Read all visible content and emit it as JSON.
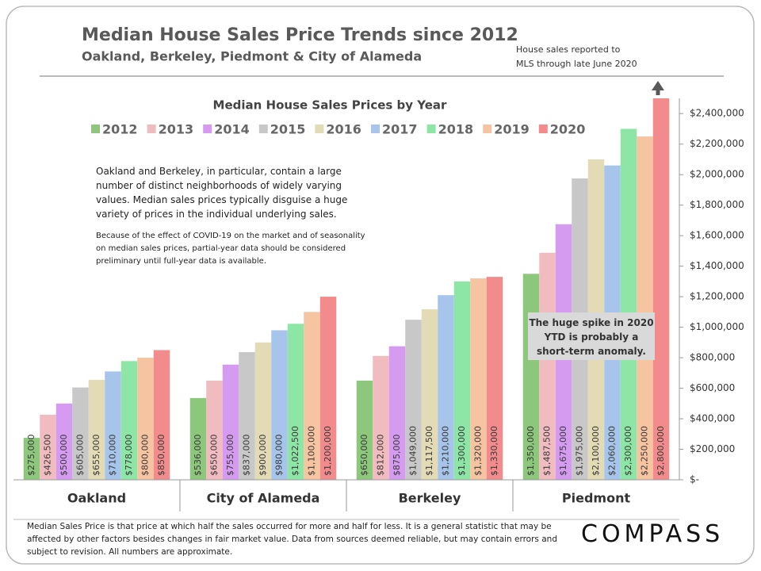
{
  "chart_data": {
    "type": "bar",
    "title": "Median House Sales Price Trends since 2012",
    "subtitle": "Oakland,  Berkeley, Piedmont & City of Alameda",
    "note": [
      "House sales reported to",
      "MLS through late June 2020"
    ],
    "chart_title": "Median House Sales Prices by Year",
    "annotations": [
      "Oakland and Berkeley, in particular, contain a large number of distinct neighborhoods of widely varying values. Median sales prices typically disguise a huge variety of prices in the individual underlying sales.",
      "Because of the effect of COVID-19 on the market and of seasonality on median sales prices, partial-year data should be considered preliminary until full-year data is available.",
      "The huge spike in 2020 YTD is probably a short-term anomaly."
    ],
    "footnote": "Median Sales Price is that price at which half the sales occurred for more and half for less. It is a general statistic that may be affected by other factors besides changes in fair market value. Data from sources deemed reliable, but may contain errors and subject to revision.  All numbers are approximate.",
    "logo": "COMPASS",
    "categories": [
      "Oakland",
      "City of Alameda",
      "Berkeley",
      "Piedmont"
    ],
    "series": [
      {
        "name": "2012",
        "color": "#8dc77b",
        "values": [
          275000,
          536000,
          650000,
          1350000
        ],
        "value_labels": [
          "$275,000",
          "$536,000",
          "$650,000",
          "$1,350,000"
        ]
      },
      {
        "name": "2013",
        "color": "#f0bcbf",
        "values": [
          426500,
          650000,
          812000,
          1487500
        ],
        "value_labels": [
          "$426,500",
          "$650,000",
          "$812,000",
          "$1,487,500"
        ]
      },
      {
        "name": "2014",
        "color": "#d59bf0",
        "values": [
          500000,
          755000,
          875000,
          1675000
        ],
        "value_labels": [
          "$500,000",
          "$755,000",
          "$875,000",
          "$1,675,000"
        ]
      },
      {
        "name": "2015",
        "color": "#c8c8c8",
        "values": [
          605000,
          837000,
          1049000,
          1975000
        ],
        "value_labels": [
          "$605,000",
          "$837,000",
          "$1,049,000",
          "$1,975,000"
        ]
      },
      {
        "name": "2016",
        "color": "#e2dbb5",
        "values": [
          655000,
          900000,
          1117500,
          2100000
        ],
        "value_labels": [
          "$655,000",
          "$900,000",
          "$1,117,500",
          "$2,100,000"
        ]
      },
      {
        "name": "2017",
        "color": "#a7c5ea",
        "values": [
          710000,
          980000,
          1210000,
          2060000
        ],
        "value_labels": [
          "$710,000",
          "$980,000",
          "$1,210,000",
          "$2,060,000"
        ]
      },
      {
        "name": "2018",
        "color": "#8ee6a6",
        "values": [
          778000,
          1022500,
          1300000,
          2300000
        ],
        "value_labels": [
          "$778,000",
          "$1,022,500",
          "$1,300,000",
          "$2,300,000"
        ]
      },
      {
        "name": "2019",
        "color": "#f7c4a2",
        "values": [
          800000,
          1100000,
          1320000,
          2250000
        ],
        "value_labels": [
          "$800,000",
          "$1,100,000",
          "$1,320,000",
          "$2,250,000"
        ]
      },
      {
        "name": "2020",
        "color": "#f28b8b",
        "values": [
          850000,
          1200000,
          1330000,
          2800000
        ],
        "value_labels": [
          "$850,000",
          "$1,200,000",
          "$1,330,000",
          "$2,800,000"
        ]
      }
    ],
    "ylim": [
      0,
      2500000
    ],
    "yticks": [
      {
        "value": 0,
        "label": "$-"
      },
      {
        "value": 200000,
        "label": "$200,000"
      },
      {
        "value": 400000,
        "label": "$400,000"
      },
      {
        "value": 600000,
        "label": "$600,000"
      },
      {
        "value": 800000,
        "label": "$800,000"
      },
      {
        "value": 1000000,
        "label": "$1,000,000"
      },
      {
        "value": 1200000,
        "label": "$1,200,000"
      },
      {
        "value": 1400000,
        "label": "$1,400,000"
      },
      {
        "value": 1600000,
        "label": "$1,600,000"
      },
      {
        "value": 1800000,
        "label": "$1,800,000"
      },
      {
        "value": 2000000,
        "label": "$2,000,000"
      },
      {
        "value": 2200000,
        "label": "$2,200,000"
      },
      {
        "value": 2400000,
        "label": "$2,400,000"
      }
    ],
    "y_axis_side": "right",
    "grid": false
  }
}
